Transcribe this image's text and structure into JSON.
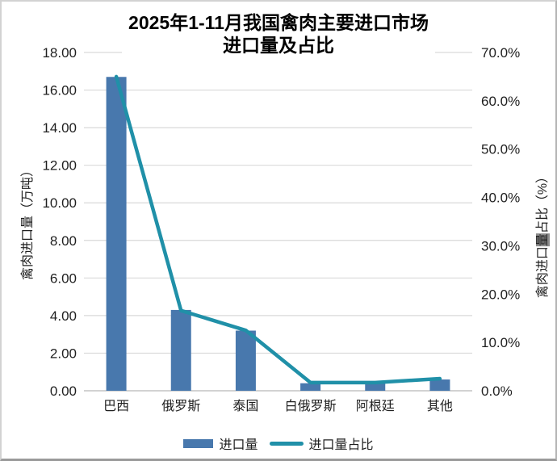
{
  "title": {
    "line1": "2025年1-11月我国禽肉主要进口市场",
    "line2": "进口量及占比"
  },
  "left_axis": {
    "title_text": "禽肉进口量（万吨）",
    "ticks": [
      "18.00",
      "16.00",
      "14.00",
      "12.00",
      "10.00",
      "8.00",
      "6.00",
      "4.00",
      "2.00",
      "0.00"
    ]
  },
  "right_axis": {
    "title_pre": "禽肉进口",
    "title_highlight": "量",
    "title_post": "占比（%）",
    "ticks": [
      "70.0%",
      "60.0%",
      "50.0%",
      "40.0%",
      "30.0%",
      "20.0%",
      "10.0%",
      "0.0%"
    ]
  },
  "legend": [
    {
      "label": "进口量",
      "type": "bar"
    },
    {
      "label": "进口量占比",
      "type": "line"
    }
  ],
  "colors": {
    "bar": "#4878ad",
    "line": "#2090a8",
    "grid": "#d9d9d9",
    "axis_line": "#c3c3c3",
    "text": "#1f1f1f",
    "highlight_bg": "#8c8c8c"
  },
  "chart_data": {
    "type": "bar",
    "subtype": "combo-bar-line-dual-axis",
    "title": "2025年1-11月我国禽肉主要进口市场 进口量及占比",
    "categories": [
      "巴西",
      "俄罗斯",
      "泰国",
      "白俄罗斯",
      "阿根廷",
      "其他"
    ],
    "series": [
      {
        "name": "进口量",
        "type": "bar",
        "axis": "left",
        "unit": "万吨",
        "values": [
          16.7,
          4.3,
          3.2,
          0.4,
          0.4,
          0.6
        ]
      },
      {
        "name": "进口量占比",
        "type": "line",
        "axis": "right",
        "unit": "%",
        "values": [
          65.0,
          16.6,
          12.5,
          1.7,
          1.7,
          2.5
        ]
      }
    ],
    "left_ylabel": "禽肉进口量（万吨）",
    "right_ylabel": "禽肉进口量占比（%）",
    "left_ylim": [
      0,
      18
    ],
    "right_ylim": [
      0,
      70
    ],
    "left_tick_step": 2,
    "right_tick_step": 10,
    "grid": true,
    "legend_position": "bottom"
  }
}
